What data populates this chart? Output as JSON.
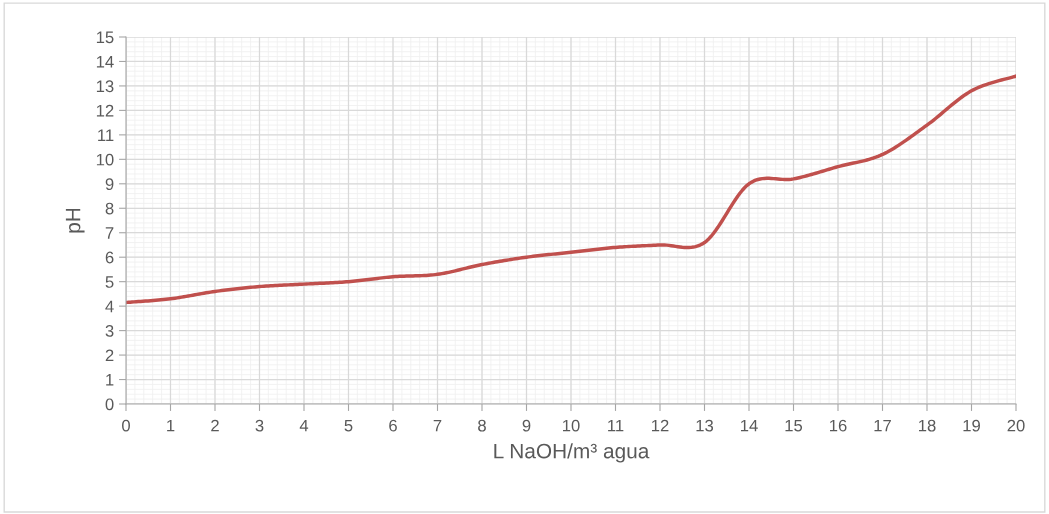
{
  "chart_data": {
    "type": "line",
    "xlabel": "L NaOH/m³ agua",
    "ylabel": "pH",
    "x": [
      0,
      1,
      2,
      3,
      4,
      5,
      6,
      7,
      8,
      9,
      10,
      11,
      12,
      13,
      14,
      15,
      16,
      17,
      18,
      19,
      20
    ],
    "series": [
      {
        "color": "#c0504d",
        "values": [
          4.15,
          4.3,
          4.6,
          4.8,
          4.9,
          5.0,
          5.2,
          5.3,
          5.7,
          6.0,
          6.2,
          6.4,
          6.5,
          6.6,
          9.0,
          9.2,
          9.7,
          10.2,
          11.4,
          12.8,
          13.4
        ]
      }
    ],
    "xlim": [
      0,
      20
    ],
    "xticks": [
      0,
      1,
      2,
      3,
      4,
      5,
      6,
      7,
      8,
      9,
      10,
      11,
      12,
      13,
      14,
      15,
      16,
      17,
      18,
      19,
      20
    ],
    "ylim": [
      0,
      15
    ],
    "yticks": [
      0,
      1,
      2,
      3,
      4,
      5,
      6,
      7,
      8,
      9,
      10,
      11,
      12,
      13,
      14,
      15
    ],
    "grid": true,
    "marker": "none",
    "line_style": "solid",
    "legend": false
  }
}
